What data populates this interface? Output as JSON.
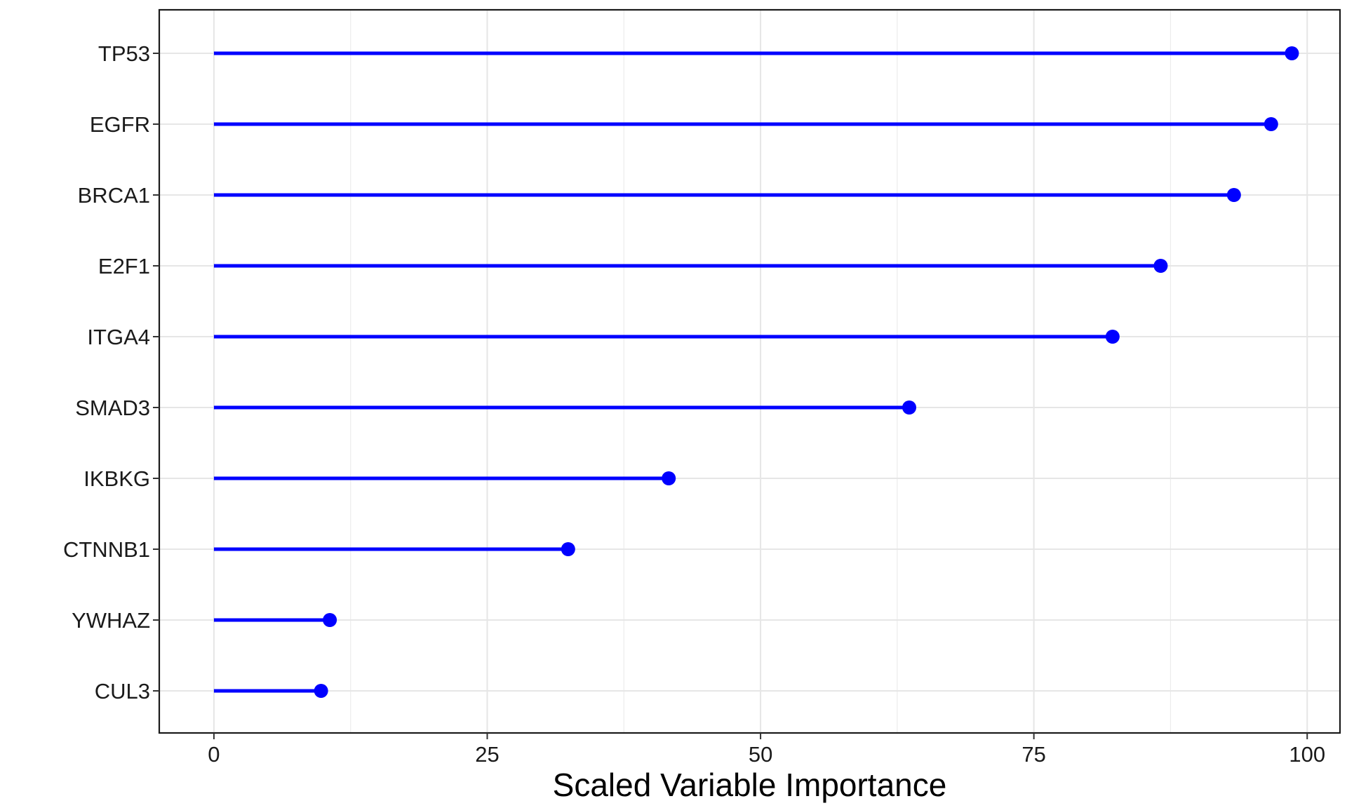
{
  "chart_data": {
    "type": "lollipop",
    "title": "",
    "xlabel": "Scaled Variable Importance",
    "ylabel": "",
    "xlim": [
      -5,
      103
    ],
    "x_ticks": [
      0,
      25,
      50,
      75,
      100
    ],
    "x_tick_labels": [
      "0",
      "25",
      "50",
      "75",
      "100"
    ],
    "grid": true,
    "legend": "none",
    "color": "#0000ff",
    "categories": [
      "TP53",
      "EGFR",
      "BRCA1",
      "E2F1",
      "ITGA4",
      "SMAD3",
      "IKBKG",
      "CTNNB1",
      "YWHAZ",
      "CUL3"
    ],
    "values": [
      98.6,
      96.7,
      93.3,
      86.6,
      82.2,
      63.6,
      41.6,
      32.4,
      10.6,
      9.8
    ]
  }
}
